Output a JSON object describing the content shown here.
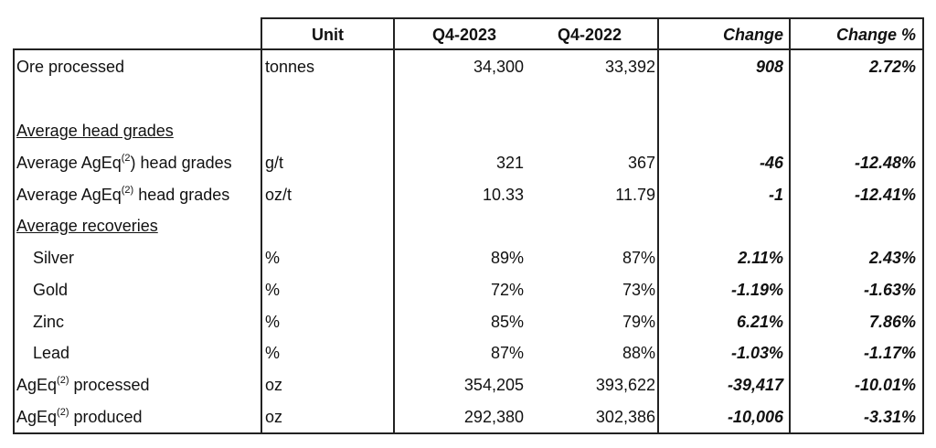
{
  "header": {
    "unit": "Unit",
    "q4_2023": "Q4-2023",
    "q4_2022": "Q4-2022",
    "change": "Change",
    "change_pct": "Change %"
  },
  "rows": [
    {
      "label": "Ore processed",
      "sup": "",
      "label_suffix": "",
      "indent": false,
      "underline": false,
      "unit": "tonnes",
      "q4_2023": "34,300",
      "q4_2022": "33,392",
      "change": "908",
      "change_pct": "2.72%"
    },
    {
      "label": "",
      "sup": "",
      "label_suffix": "",
      "indent": false,
      "underline": false,
      "unit": "",
      "q4_2023": "",
      "q4_2022": "",
      "change": "",
      "change_pct": ""
    },
    {
      "label": "Average head grades",
      "sup": "",
      "label_suffix": "",
      "indent": false,
      "underline": true,
      "unit": "",
      "q4_2023": "",
      "q4_2022": "",
      "change": "",
      "change_pct": ""
    },
    {
      "label": "Average AgEq",
      "sup": "(2",
      "label_suffix": ") head grades",
      "indent": false,
      "underline": false,
      "unit": "g/t",
      "q4_2023": "321",
      "q4_2022": "367",
      "change": "-46",
      "change_pct": "-12.48%"
    },
    {
      "label": "Average AgEq",
      "sup": "(2)",
      "label_suffix": " head grades",
      "indent": false,
      "underline": false,
      "unit": "oz/t",
      "q4_2023": "10.33",
      "q4_2022": "11.79",
      "change": "-1",
      "change_pct": "-12.41%"
    },
    {
      "label": "Average recoveries",
      "sup": "",
      "label_suffix": "",
      "indent": false,
      "underline": true,
      "unit": "",
      "q4_2023": "",
      "q4_2022": "",
      "change": "",
      "change_pct": ""
    },
    {
      "label": "Silver",
      "sup": "",
      "label_suffix": "",
      "indent": true,
      "underline": false,
      "unit": "%",
      "q4_2023": "89%",
      "q4_2022": "87%",
      "change": "2.11%",
      "change_pct": "2.43%"
    },
    {
      "label": "Gold",
      "sup": "",
      "label_suffix": "",
      "indent": true,
      "underline": false,
      "unit": "%",
      "q4_2023": "72%",
      "q4_2022": "73%",
      "change": "-1.19%",
      "change_pct": "-1.63%"
    },
    {
      "label": "Zinc",
      "sup": "",
      "label_suffix": "",
      "indent": true,
      "underline": false,
      "unit": "%",
      "q4_2023": "85%",
      "q4_2022": "79%",
      "change": "6.21%",
      "change_pct": "7.86%"
    },
    {
      "label": "Lead",
      "sup": "",
      "label_suffix": "",
      "indent": true,
      "underline": false,
      "unit": "%",
      "q4_2023": "87%",
      "q4_2022": "88%",
      "change": "-1.03%",
      "change_pct": "-1.17%"
    },
    {
      "label": "AgEq",
      "sup": "(2)",
      "label_suffix": " processed",
      "indent": false,
      "underline": false,
      "unit": "oz",
      "q4_2023": "354,205",
      "q4_2022": "393,622",
      "change": "-39,417",
      "change_pct": "-10.01%"
    },
    {
      "label": "AgEq",
      "sup": "(2)",
      "label_suffix": " produced",
      "indent": false,
      "underline": false,
      "unit": "oz",
      "q4_2023": "292,380",
      "q4_2022": "302,386",
      "change": "-10,006",
      "change_pct": "-3.31%"
    }
  ]
}
